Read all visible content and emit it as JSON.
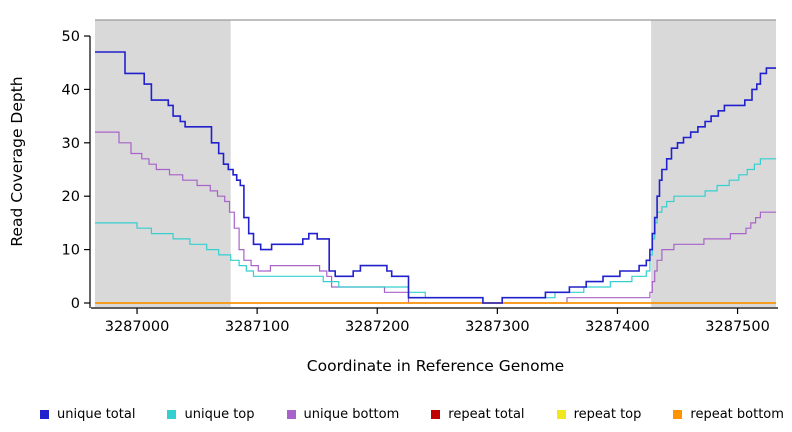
{
  "chart_data": {
    "type": "line",
    "subtype": "step",
    "title": "",
    "xlabel": "Coordinate in Reference Genome",
    "ylabel": "Read Coverage Depth",
    "xlim": [
      3286965,
      3287532
    ],
    "ylim": [
      0,
      53
    ],
    "xticks": [
      3287000,
      3287100,
      3287200,
      3287300,
      3287400,
      3287500
    ],
    "yticks": [
      0,
      10,
      20,
      30,
      40,
      50
    ],
    "grid": false,
    "legend_position": "bottom",
    "shaded_regions": [
      {
        "x0": 3286965,
        "x1": 3287078,
        "color": "#d9d9d9"
      },
      {
        "x0": 3287428,
        "x1": 3287532,
        "color": "#d9d9d9"
      }
    ],
    "top_rule": {
      "y": 53,
      "color": "#9a9a9a"
    },
    "draw_order": [
      2,
      1,
      3,
      4,
      5,
      0
    ],
    "series": [
      {
        "name": "unique total",
        "color": "#2020cc",
        "width": 1.6,
        "points": [
          [
            3286965,
            47
          ],
          [
            3286990,
            43
          ],
          [
            3287006,
            41
          ],
          [
            3287012,
            38
          ],
          [
            3287026,
            37
          ],
          [
            3287030,
            35
          ],
          [
            3287036,
            34
          ],
          [
            3287040,
            33
          ],
          [
            3287062,
            30
          ],
          [
            3287068,
            28
          ],
          [
            3287072,
            26
          ],
          [
            3287076,
            25
          ],
          [
            3287080,
            24
          ],
          [
            3287083,
            23
          ],
          [
            3287086,
            22
          ],
          [
            3287089,
            16
          ],
          [
            3287093,
            13
          ],
          [
            3287097,
            11
          ],
          [
            3287103,
            10
          ],
          [
            3287112,
            11
          ],
          [
            3287138,
            12
          ],
          [
            3287143,
            13
          ],
          [
            3287150,
            12
          ],
          [
            3287160,
            6
          ],
          [
            3287165,
            5
          ],
          [
            3287180,
            6
          ],
          [
            3287186,
            7
          ],
          [
            3287205,
            7
          ],
          [
            3287208,
            6
          ],
          [
            3287212,
            5
          ],
          [
            3287226,
            1
          ],
          [
            3287288,
            0
          ],
          [
            3287304,
            1
          ],
          [
            3287340,
            2
          ],
          [
            3287360,
            3
          ],
          [
            3287374,
            4
          ],
          [
            3287388,
            5
          ],
          [
            3287402,
            6
          ],
          [
            3287418,
            7
          ],
          [
            3287424,
            8
          ],
          [
            3287427,
            10
          ],
          [
            3287429,
            13
          ],
          [
            3287431,
            16
          ],
          [
            3287433,
            20
          ],
          [
            3287435,
            23
          ],
          [
            3287437,
            25
          ],
          [
            3287441,
            27
          ],
          [
            3287445,
            29
          ],
          [
            3287450,
            30
          ],
          [
            3287455,
            31
          ],
          [
            3287461,
            32
          ],
          [
            3287467,
            33
          ],
          [
            3287473,
            34
          ],
          [
            3287478,
            35
          ],
          [
            3287484,
            36
          ],
          [
            3287489,
            37
          ],
          [
            3287506,
            38
          ],
          [
            3287512,
            40
          ],
          [
            3287516,
            41
          ],
          [
            3287519,
            43
          ],
          [
            3287524,
            44
          ],
          [
            3287532,
            44
          ]
        ]
      },
      {
        "name": "unique top",
        "color": "#35cfcf",
        "width": 1.2,
        "points": [
          [
            3286965,
            15
          ],
          [
            3287000,
            14
          ],
          [
            3287012,
            13
          ],
          [
            3287030,
            12
          ],
          [
            3287044,
            11
          ],
          [
            3287058,
            10
          ],
          [
            3287068,
            9
          ],
          [
            3287078,
            8
          ],
          [
            3287085,
            7
          ],
          [
            3287091,
            6
          ],
          [
            3287097,
            5
          ],
          [
            3287155,
            4
          ],
          [
            3287168,
            3
          ],
          [
            3287226,
            2
          ],
          [
            3287240,
            1
          ],
          [
            3287288,
            0
          ],
          [
            3287304,
            1
          ],
          [
            3287348,
            2
          ],
          [
            3287372,
            3
          ],
          [
            3287394,
            4
          ],
          [
            3287412,
            5
          ],
          [
            3287424,
            6
          ],
          [
            3287427,
            9
          ],
          [
            3287429,
            12
          ],
          [
            3287431,
            15
          ],
          [
            3287433,
            17
          ],
          [
            3287437,
            18
          ],
          [
            3287441,
            19
          ],
          [
            3287447,
            20
          ],
          [
            3287473,
            21
          ],
          [
            3287483,
            22
          ],
          [
            3287493,
            23
          ],
          [
            3287501,
            24
          ],
          [
            3287508,
            25
          ],
          [
            3287514,
            26
          ],
          [
            3287519,
            27
          ],
          [
            3287532,
            27
          ]
        ]
      },
      {
        "name": "unique bottom",
        "color": "#a763c9",
        "width": 1.2,
        "points": [
          [
            3286965,
            32
          ],
          [
            3286985,
            30
          ],
          [
            3286995,
            28
          ],
          [
            3287004,
            27
          ],
          [
            3287010,
            26
          ],
          [
            3287016,
            25
          ],
          [
            3287027,
            24
          ],
          [
            3287038,
            23
          ],
          [
            3287050,
            22
          ],
          [
            3287061,
            21
          ],
          [
            3287067,
            20
          ],
          [
            3287073,
            19
          ],
          [
            3287077,
            17
          ],
          [
            3287081,
            14
          ],
          [
            3287085,
            10
          ],
          [
            3287089,
            8
          ],
          [
            3287095,
            7
          ],
          [
            3287101,
            6
          ],
          [
            3287111,
            7
          ],
          [
            3287152,
            6
          ],
          [
            3287158,
            5
          ],
          [
            3287162,
            3
          ],
          [
            3287206,
            2
          ],
          [
            3287226,
            0
          ],
          [
            3287358,
            1
          ],
          [
            3287427,
            2
          ],
          [
            3287429,
            4
          ],
          [
            3287431,
            6
          ],
          [
            3287433,
            8
          ],
          [
            3287437,
            10
          ],
          [
            3287447,
            11
          ],
          [
            3287472,
            12
          ],
          [
            3287494,
            13
          ],
          [
            3287507,
            14
          ],
          [
            3287511,
            15
          ],
          [
            3287515,
            16
          ],
          [
            3287519,
            17
          ],
          [
            3287532,
            17
          ]
        ]
      },
      {
        "name": "repeat total",
        "color": "#c00000",
        "width": 1.2,
        "points": [
          [
            3286965,
            0
          ],
          [
            3287532,
            0
          ]
        ]
      },
      {
        "name": "repeat top",
        "color": "#f2e61e",
        "width": 1.2,
        "points": [
          [
            3286965,
            0
          ],
          [
            3287532,
            0
          ]
        ]
      },
      {
        "name": "repeat bottom",
        "color": "#ff9400",
        "width": 1.4,
        "points": [
          [
            3286965,
            0
          ],
          [
            3287532,
            0
          ]
        ]
      }
    ]
  },
  "layout_colors": {
    "axis": "#000000",
    "shade": "#d9d9d9",
    "background": "#ffffff"
  }
}
